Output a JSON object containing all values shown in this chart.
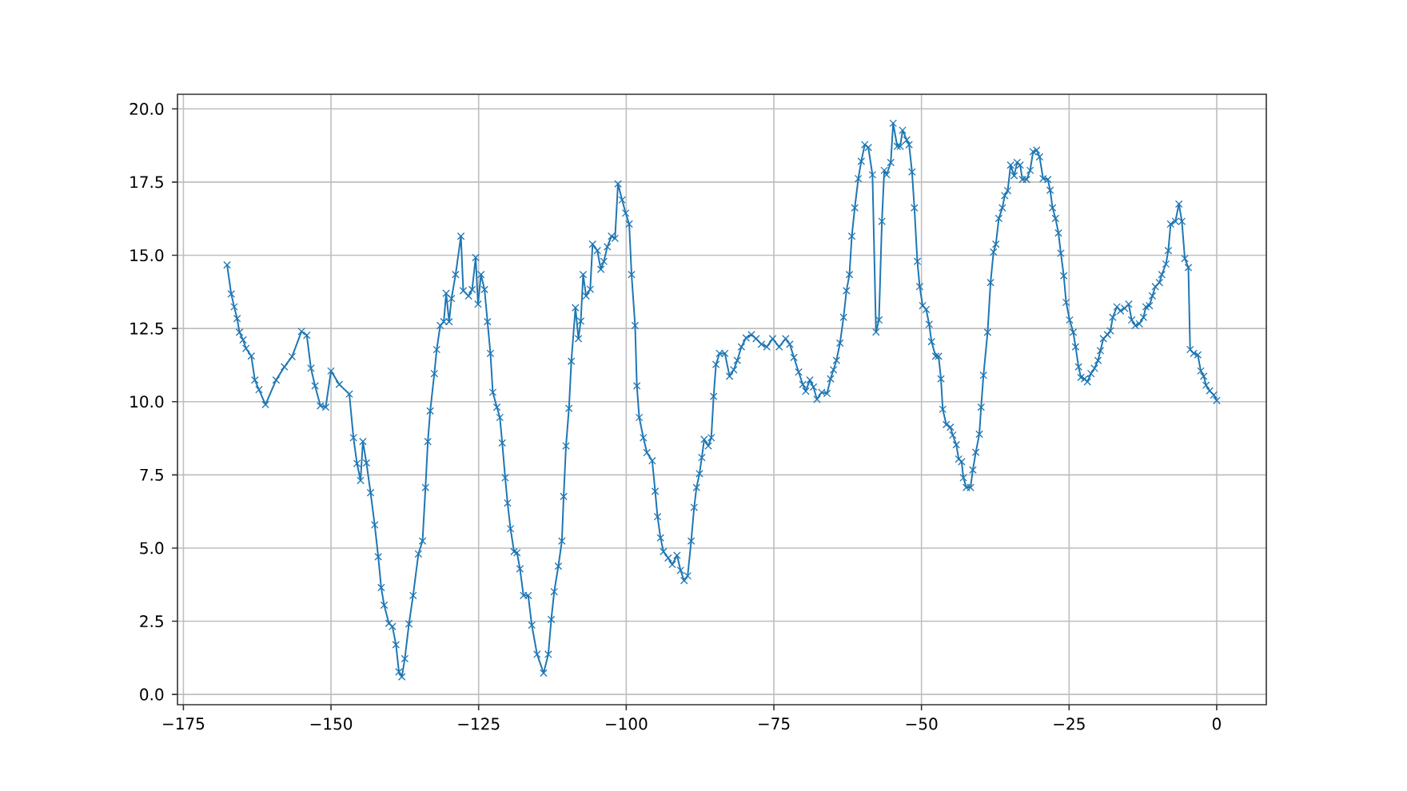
{
  "chart_data": {
    "type": "line",
    "marker": "cross",
    "grid": true,
    "xlim": [
      -176.0,
      8.4
    ],
    "ylim": [
      -0.35,
      20.5
    ],
    "xticks": [
      {
        "value": -175,
        "label": "−175"
      },
      {
        "value": -150,
        "label": "−150"
      },
      {
        "value": -125,
        "label": "−125"
      },
      {
        "value": -100,
        "label": "−100"
      },
      {
        "value": -75,
        "label": "−75"
      },
      {
        "value": -50,
        "label": "−50"
      },
      {
        "value": -25,
        "label": "−25"
      },
      0
    ],
    "yticks": [
      {
        "value": 0,
        "label": "0.0"
      },
      {
        "value": 2.5,
        "label": "2.5"
      },
      {
        "value": 5,
        "label": "5.0"
      },
      {
        "value": 7.5,
        "label": "7.5"
      },
      {
        "value": 10,
        "label": "10.0"
      },
      {
        "value": 12.5,
        "label": "12.5"
      },
      {
        "value": 15,
        "label": "15.0"
      },
      {
        "value": 17.5,
        "label": "17.5"
      },
      {
        "value": 20,
        "label": "20.0"
      }
    ],
    "series": [
      {
        "color": "#1f77b4",
        "x": [
          -167.6,
          -166.9,
          -166.4,
          -165.9,
          -165.5,
          -164.9,
          -164.4,
          -163.5,
          -162.9,
          -162.2,
          -161.1,
          -159.3,
          -157.9,
          -156.6,
          -155.0,
          -154.1,
          -153.4,
          -152.7,
          -151.8,
          -150.9,
          -150.0,
          -148.6,
          -146.9,
          -146.2,
          -145.6,
          -145.0,
          -144.6,
          -144.0,
          -143.3,
          -142.6,
          -142.0,
          -141.5,
          -141.0,
          -140.2,
          -139.6,
          -139.0,
          -138.5,
          -138.0,
          -137.5,
          -136.8,
          -136.1,
          -135.2,
          -134.5,
          -134.0,
          -133.6,
          -133.2,
          -132.5,
          -132.1,
          -131.5,
          -130.9,
          -130.5,
          -130.0,
          -129.6,
          -128.9,
          -128.0,
          -127.6,
          -126.7,
          -126.1,
          -125.5,
          -125.1,
          -124.6,
          -124.0,
          -123.5,
          -123.0,
          -122.6,
          -121.9,
          -121.4,
          -121.0,
          -120.5,
          -120.1,
          -119.6,
          -119.0,
          -118.5,
          -118.0,
          -117.4,
          -116.6,
          -116.0,
          -115.1,
          -114.0,
          -113.2,
          -112.7,
          -112.2,
          -111.5,
          -110.9,
          -110.6,
          -110.2,
          -109.7,
          -109.3,
          -108.6,
          -108.1,
          -107.7,
          -107.3,
          -106.8,
          -106.1,
          -105.7,
          -104.9,
          -104.3,
          -103.8,
          -103.2,
          -102.5,
          -101.9,
          -101.4,
          -100.7,
          -100.1,
          -99.5,
          -99.1,
          -98.5,
          -98.2,
          -97.8,
          -97.1,
          -96.5,
          -95.6,
          -95.1,
          -94.7,
          -94.2,
          -93.7,
          -92.9,
          -92.2,
          -91.4,
          -90.8,
          -90.2,
          -89.6,
          -89.0,
          -88.5,
          -88.1,
          -87.6,
          -87.2,
          -86.8,
          -86.1,
          -85.6,
          -85.2,
          -84.8,
          -84.2,
          -83.3,
          -82.5,
          -81.8,
          -81.2,
          -80.5,
          -79.7,
          -78.8,
          -78.0,
          -77.1,
          -76.2,
          -75.2,
          -74.1,
          -73.0,
          -72.3,
          -71.6,
          -70.8,
          -70.1,
          -69.6,
          -68.9,
          -68.3,
          -67.7,
          -66.9,
          -66.0,
          -65.4,
          -64.9,
          -64.4,
          -63.8,
          -63.2,
          -62.7,
          -62.2,
          -61.8,
          -61.3,
          -60.7,
          -60.2,
          -59.6,
          -59.0,
          -58.3,
          -57.7,
          -57.2,
          -56.7,
          -56.3,
          -55.9,
          -55.2,
          -54.8,
          -54.1,
          -53.6,
          -53.2,
          -52.5,
          -52.1,
          -51.6,
          -51.2,
          -50.7,
          -50.3,
          -49.8,
          -49.2,
          -48.7,
          -48.3,
          -47.6,
          -47.1,
          -46.7,
          -46.4,
          -45.8,
          -45.1,
          -44.7,
          -44.1,
          -43.7,
          -43.2,
          -42.9,
          -42.4,
          -41.7,
          -41.3,
          -40.8,
          -40.2,
          -39.9,
          -39.5,
          -38.8,
          -38.3,
          -37.8,
          -37.4,
          -36.9,
          -36.3,
          -35.9,
          -35.4,
          -34.9,
          -34.3,
          -33.8,
          -33.3,
          -32.9,
          -32.2,
          -31.6,
          -31.1,
          -30.5,
          -30.0,
          -29.4,
          -28.6,
          -28.2,
          -27.8,
          -27.3,
          -26.8,
          -26.4,
          -25.9,
          -25.5,
          -24.9,
          -24.3,
          -23.9,
          -23.4,
          -23.0,
          -22.4,
          -21.9,
          -21.3,
          -20.7,
          -20.1,
          -19.7,
          -19.2,
          -18.5,
          -18.0,
          -17.6,
          -16.9,
          -16.3,
          -15.6,
          -14.9,
          -14.4,
          -13.8,
          -13.1,
          -12.4,
          -12.0,
          -11.4,
          -10.9,
          -10.4,
          -9.7,
          -9.3,
          -8.6,
          -8.2,
          -7.8,
          -7.0,
          -6.4,
          -5.9,
          -5.4,
          -4.8,
          -4.5,
          -3.9,
          -3.2,
          -2.7,
          -2.2,
          -1.8,
          -1.2,
          -0.5,
          0.0
        ],
        "values": [
          14.67,
          13.68,
          13.24,
          12.84,
          12.37,
          12.11,
          11.82,
          11.56,
          10.74,
          10.41,
          9.9,
          10.74,
          11.19,
          11.54,
          12.4,
          12.27,
          11.14,
          10.54,
          9.86,
          9.81,
          11.05,
          10.59,
          10.26,
          8.77,
          7.89,
          7.31,
          8.64,
          7.91,
          6.89,
          5.79,
          4.7,
          3.65,
          3.05,
          2.43,
          2.32,
          1.7,
          0.77,
          0.6,
          1.22,
          2.41,
          3.38,
          4.8,
          5.24,
          7.07,
          8.64,
          9.68,
          10.96,
          11.78,
          12.6,
          12.73,
          13.7,
          12.73,
          13.52,
          14.34,
          15.65,
          13.79,
          13.61,
          13.83,
          14.92,
          13.33,
          14.34,
          13.83,
          12.73,
          11.65,
          10.32,
          9.81,
          9.46,
          8.59,
          7.4,
          6.54,
          5.66,
          4.88,
          4.84,
          4.29,
          3.38,
          3.38,
          2.37,
          1.37,
          0.73,
          1.37,
          2.56,
          3.51,
          4.38,
          5.24,
          6.76,
          8.49,
          9.77,
          11.38,
          13.21,
          12.15,
          12.75,
          14.34,
          13.61,
          13.84,
          15.38,
          15.16,
          14.52,
          14.79,
          15.29,
          15.65,
          15.58,
          17.44,
          16.89,
          16.44,
          16.07,
          14.34,
          12.6,
          10.54,
          9.46,
          8.77,
          8.26,
          7.98,
          6.94,
          6.07,
          5.35,
          4.88,
          4.66,
          4.44,
          4.75,
          4.24,
          3.89,
          4.05,
          5.24,
          6.39,
          7.07,
          7.54,
          8.09,
          8.71,
          8.49,
          8.77,
          10.18,
          11.27,
          11.65,
          11.65,
          10.87,
          11.09,
          11.41,
          11.87,
          12.18,
          12.29,
          12.15,
          11.96,
          11.87,
          12.15,
          11.87,
          12.15,
          11.96,
          11.51,
          11.01,
          10.59,
          10.36,
          10.74,
          10.5,
          10.08,
          10.32,
          10.28,
          10.78,
          11.09,
          11.41,
          12.0,
          12.88,
          13.79,
          14.34,
          15.65,
          16.62,
          17.62,
          18.21,
          18.78,
          18.68,
          17.75,
          12.38,
          12.79,
          16.16,
          17.9,
          17.75,
          18.17,
          19.51,
          18.72,
          18.72,
          19.27,
          18.94,
          18.78,
          17.85,
          16.62,
          14.79,
          13.93,
          13.28,
          13.15,
          12.64,
          12.05,
          11.55,
          11.55,
          10.78,
          9.74,
          9.22,
          9.13,
          8.86,
          8.53,
          8.04,
          7.95,
          7.4,
          7.07,
          7.07,
          7.67,
          8.27,
          8.89,
          9.81,
          10.9,
          12.37,
          14.07,
          15.11,
          15.38,
          16.26,
          16.62,
          17.04,
          17.21,
          18.08,
          17.72,
          18.17,
          18.08,
          17.59,
          17.59,
          17.9,
          18.54,
          18.59,
          18.36,
          17.62,
          17.59,
          17.22,
          16.62,
          16.26,
          15.76,
          15.07,
          14.3,
          13.39,
          12.79,
          12.37,
          11.87,
          11.19,
          10.83,
          10.78,
          10.68,
          10.96,
          11.14,
          11.41,
          11.74,
          12.15,
          12.29,
          12.42,
          12.88,
          13.24,
          13.1,
          13.19,
          13.33,
          12.79,
          12.6,
          12.66,
          12.88,
          13.24,
          13.28,
          13.61,
          13.93,
          14.07,
          14.34,
          14.7,
          15.16,
          16.07,
          16.16,
          16.75,
          16.16,
          14.89,
          14.58,
          11.78,
          11.65,
          11.6,
          11.05,
          10.87,
          10.56,
          10.37,
          10.23,
          10.04
        ]
      }
    ]
  }
}
